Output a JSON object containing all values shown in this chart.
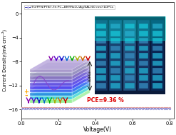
{
  "xlabel": "Voltage(V)",
  "ylabel": "Current Density(mA cm⁻²)",
  "legend_label": "ITO/PFN/PTB7-Th:PC₇₁BM/MoO₃/Ag/EAL(60 nm)/1DPCs",
  "xlim": [
    0.0,
    0.82
  ],
  "ylim": [
    -17.5,
    2.0
  ],
  "xticks": [
    0.0,
    0.2,
    0.4,
    0.6,
    0.8
  ],
  "yticks": [
    0,
    -4,
    -8,
    -12,
    -16
  ],
  "line_color": "#5555bb",
  "marker_color": "#7777cc",
  "line_color2": "#cc4444",
  "pce_text": "PCE=9.36 %",
  "pce_color": "#dd0000",
  "background_color": "#ffffff",
  "border_color": "#333333",
  "arrow_colors": [
    "#8800aa",
    "#5500cc",
    "#0000cc",
    "#0066cc",
    "#00aa00",
    "#aaaa00",
    "#cc6600",
    "#cc0000"
  ],
  "layer_colors_top": [
    "#cceeff",
    "#aaddff",
    "#88ccee",
    "#66aadd",
    "#4488cc",
    "#2266bb",
    "#1144aa",
    "#003399",
    "#002288",
    "#001177"
  ],
  "layer_colors_bottom": [
    "#aaffaa",
    "#88dd88",
    "#66cc66",
    "#449944",
    "#228822",
    "#006600"
  ],
  "inset1_bg": "#bbddff",
  "inset2_bg": "#2255aa"
}
